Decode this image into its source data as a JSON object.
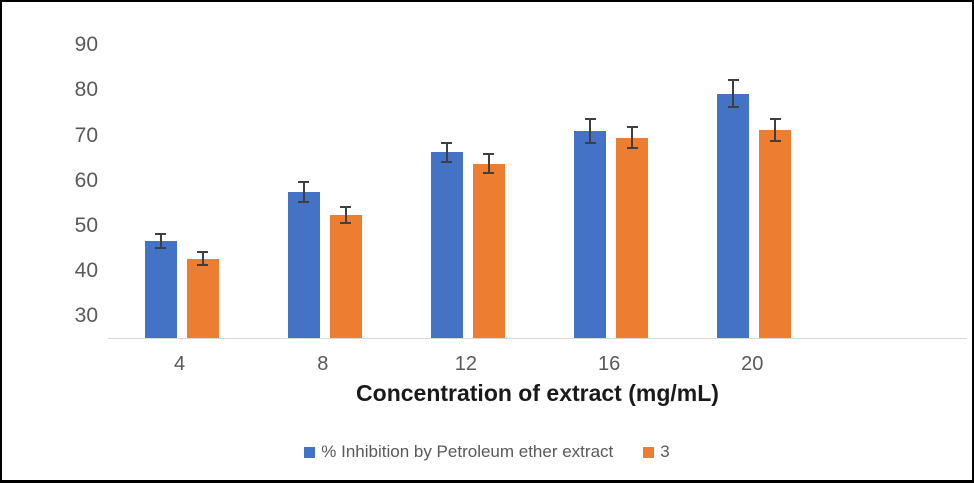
{
  "chart_data": {
    "type": "bar",
    "title": "",
    "xlabel": "Concentration of extract (mg/mL)",
    "ylabel": "",
    "categories": [
      "4",
      "8",
      "12",
      "16",
      "20"
    ],
    "series": [
      {
        "name": "% Inhibition by Petroleum ether extract",
        "color": "#4472C4",
        "values": [
          46.7,
          57.5,
          66.3,
          71.0,
          79.3
        ],
        "errors": [
          1.6,
          2.2,
          2.1,
          2.6,
          3.0
        ]
      },
      {
        "name": "3",
        "color": "#ED7D31",
        "values": [
          42.8,
          52.4,
          63.8,
          69.5,
          71.2
        ],
        "errors": [
          1.4,
          1.7,
          2.1,
          2.3,
          2.5
        ]
      }
    ],
    "y_axis": {
      "min": 25,
      "max": 95,
      "tick_labels": [
        "30",
        "40",
        "50",
        "60",
        "70",
        "80",
        "90"
      ],
      "tick_values": [
        30,
        40,
        50,
        60,
        70,
        80,
        90
      ]
    },
    "grid": false,
    "legend_position": "bottom",
    "colors": {
      "error_bar": "#3f3f3f",
      "axis_line": "#d9d9d9",
      "tick_text": "#595959",
      "title_text": "#1a1a1a"
    }
  }
}
